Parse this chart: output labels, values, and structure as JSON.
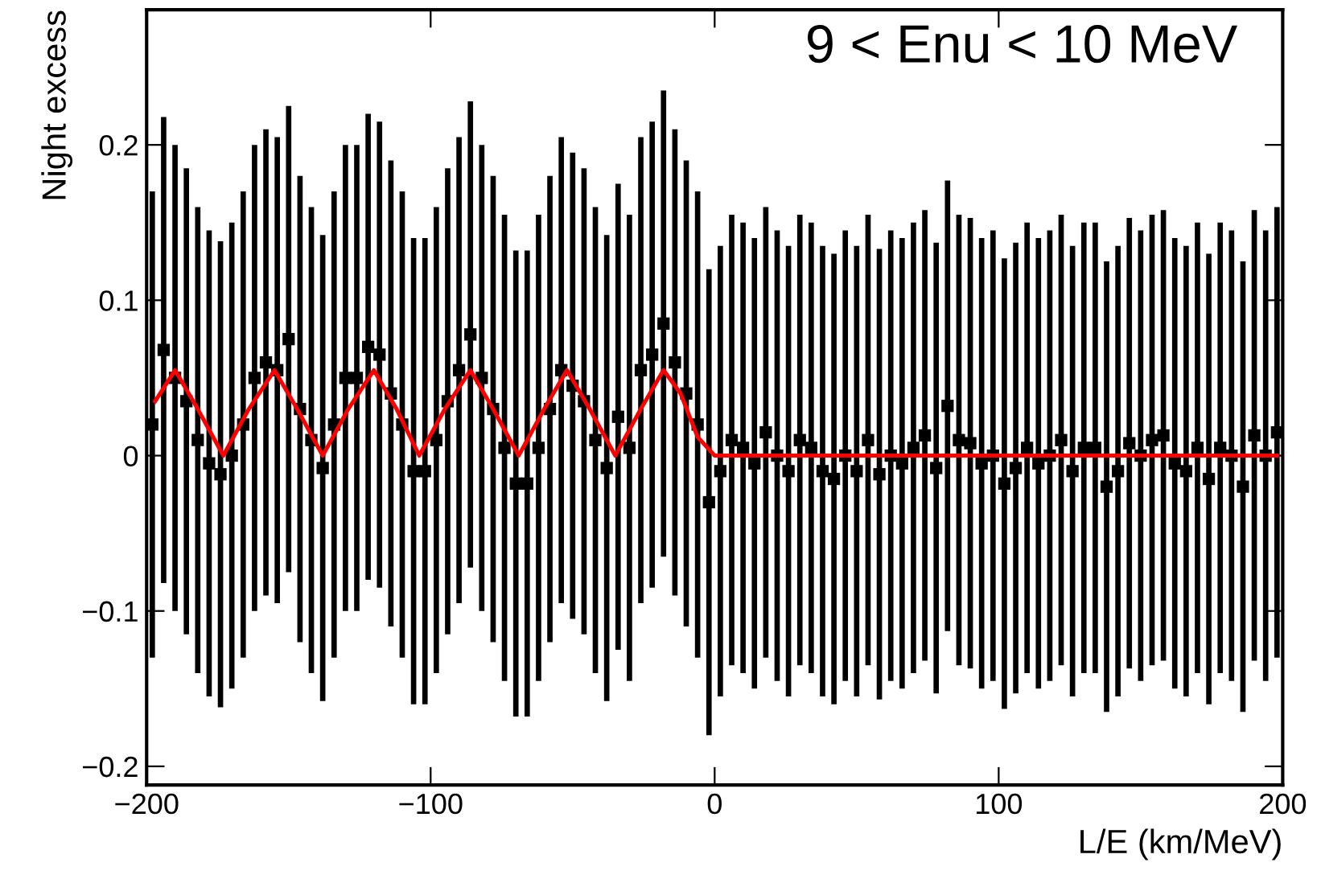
{
  "chart_data": {
    "type": "scatter",
    "xlabel": "L/E (km/MeV)",
    "ylabel": "Night excess",
    "annotations": [
      "9 < Enu < 10 MeV"
    ],
    "xlim": [
      -200,
      200
    ],
    "xticks": [
      {
        "value": -200,
        "label": "−200"
      },
      {
        "value": -100,
        "label": "−100"
      },
      0,
      100,
      200
    ],
    "ylim": [
      -0.212,
      0.287
    ],
    "yticks": [
      {
        "value": -0.2,
        "label": "−0.2"
      },
      {
        "value": -0.1,
        "label": "−0.1"
      },
      0,
      0.1,
      0.2
    ],
    "grid": false,
    "marker": "square",
    "series": [
      {
        "type": "scatter",
        "color": "#000000",
        "x": [
          -198,
          -194,
          -190,
          -186,
          -182,
          -178,
          -174,
          -170,
          -166,
          -162,
          -158,
          -154,
          -150,
          -146,
          -142,
          -138,
          -134,
          -130,
          -126,
          -122,
          -118,
          -114,
          -110,
          -106,
          -102,
          -98,
          -94,
          -90,
          -86,
          -82,
          -78,
          -74,
          -70,
          -66,
          -62,
          -58,
          -54,
          -50,
          -46,
          -42,
          -38,
          -34,
          -30,
          -26,
          -22,
          -18,
          -14,
          -10,
          -6,
          -2,
          2,
          6,
          10,
          14,
          18,
          22,
          26,
          30,
          34,
          38,
          42,
          46,
          50,
          54,
          58,
          62,
          66,
          70,
          74,
          78,
          82,
          86,
          90,
          94,
          98,
          102,
          106,
          110,
          114,
          118,
          122,
          126,
          130,
          134,
          138,
          142,
          146,
          150,
          154,
          158,
          162,
          166,
          170,
          174,
          178,
          182,
          186,
          190,
          194,
          198
        ],
        "values": [
          0.02,
          0.068,
          0.05,
          0.035,
          0.01,
          -0.005,
          -0.012,
          0.0,
          0.02,
          0.05,
          0.06,
          0.055,
          0.075,
          0.03,
          0.01,
          -0.008,
          0.02,
          0.05,
          0.05,
          0.07,
          0.065,
          0.04,
          0.02,
          -0.01,
          -0.01,
          0.01,
          0.035,
          0.055,
          0.078,
          0.05,
          0.03,
          0.005,
          -0.018,
          -0.018,
          0.005,
          0.03,
          0.055,
          0.045,
          0.035,
          0.01,
          -0.008,
          0.025,
          0.005,
          0.055,
          0.065,
          0.085,
          0.06,
          0.04,
          0.02,
          -0.03,
          -0.01,
          0.01,
          0.005,
          -0.005,
          0.015,
          0.0,
          -0.01,
          0.01,
          0.005,
          -0.01,
          -0.015,
          0.0,
          -0.01,
          0.01,
          -0.012,
          0.0,
          -0.005,
          0.005,
          0.013,
          -0.008,
          0.032,
          0.01,
          0.008,
          -0.005,
          0.0,
          -0.018,
          -0.008,
          0.005,
          -0.005,
          0.0,
          0.01,
          -0.01,
          0.005,
          0.005,
          -0.02,
          -0.01,
          0.008,
          0.0,
          0.01,
          0.013,
          -0.005,
          -0.01,
          0.005,
          -0.015,
          0.005,
          0.0,
          -0.02,
          0.013,
          0.0,
          0.015
        ],
        "errors": [
          0.15,
          0.15,
          0.15,
          0.15,
          0.15,
          0.15,
          0.15,
          0.15,
          0.15,
          0.15,
          0.15,
          0.15,
          0.15,
          0.15,
          0.15,
          0.15,
          0.15,
          0.15,
          0.15,
          0.15,
          0.15,
          0.15,
          0.15,
          0.15,
          0.15,
          0.15,
          0.15,
          0.15,
          0.15,
          0.15,
          0.15,
          0.15,
          0.15,
          0.15,
          0.15,
          0.15,
          0.15,
          0.15,
          0.15,
          0.15,
          0.15,
          0.15,
          0.15,
          0.15,
          0.15,
          0.15,
          0.15,
          0.15,
          0.15,
          0.15,
          0.145,
          0.145,
          0.145,
          0.145,
          0.145,
          0.145,
          0.145,
          0.145,
          0.145,
          0.145,
          0.145,
          0.145,
          0.145,
          0.145,
          0.145,
          0.145,
          0.145,
          0.145,
          0.145,
          0.145,
          0.145,
          0.145,
          0.145,
          0.145,
          0.145,
          0.145,
          0.145,
          0.145,
          0.145,
          0.145,
          0.145,
          0.145,
          0.145,
          0.145,
          0.145,
          0.145,
          0.145,
          0.145,
          0.145,
          0.145,
          0.145,
          0.145,
          0.145,
          0.145,
          0.145,
          0.145,
          0.145,
          0.145,
          0.145,
          0.145
        ]
      },
      {
        "type": "line",
        "color": "#ff0000",
        "marker": "none",
        "line_style": "solid",
        "x": [
          -197,
          -190,
          -182,
          -173,
          -164,
          -155,
          -147,
          -138,
          -129,
          -120,
          -112,
          -104,
          -95,
          -86,
          -78,
          -69,
          -60,
          -52,
          -44,
          -35,
          -26,
          -18,
          -12,
          -6,
          0,
          198
        ],
        "values": [
          0.035,
          0.055,
          0.03,
          0.0,
          0.03,
          0.055,
          0.03,
          0.0,
          0.03,
          0.055,
          0.03,
          0.0,
          0.03,
          0.055,
          0.03,
          0.0,
          0.03,
          0.055,
          0.03,
          0.0,
          0.03,
          0.055,
          0.04,
          0.012,
          0.0,
          0.0
        ]
      }
    ]
  }
}
